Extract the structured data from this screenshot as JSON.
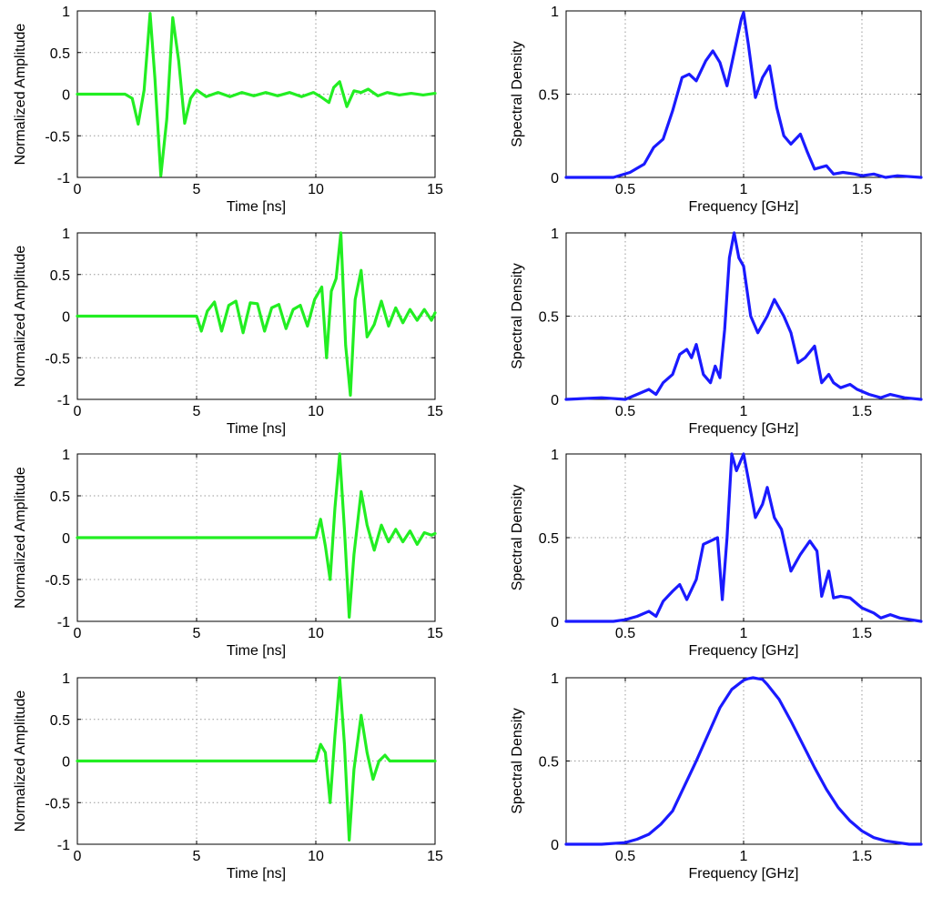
{
  "colors": {
    "time_trace": "#22ee22",
    "spectrum_trace": "#1a1aff",
    "grid": "#9a9a9a",
    "axes": "#000000",
    "background": "#ffffff"
  },
  "chart_data": [
    {
      "id": "time-1",
      "type": "line",
      "xlabel": "Time [ns]",
      "ylabel": "Normalized Amplitude",
      "xlim": [
        0,
        15
      ],
      "ylim": [
        -1,
        1
      ],
      "xticks": [
        0,
        5,
        10,
        15
      ],
      "xtick_labels": [
        "0",
        "5",
        "10",
        "15"
      ],
      "yticks": [
        -1,
        -0.5,
        0,
        0.5,
        1
      ],
      "ytick_labels": [
        "-1",
        "-0.5",
        "0",
        "0.5",
        "1"
      ],
      "grid": true,
      "color": "time_trace",
      "series": [
        {
          "x": [
            0,
            2.0,
            2.3,
            2.55,
            2.8,
            3.05,
            3.25,
            3.5,
            3.75,
            4.0,
            4.25,
            4.5,
            4.75,
            5.0,
            5.4,
            5.9,
            6.4,
            6.9,
            7.4,
            7.9,
            8.4,
            8.9,
            9.4,
            9.9,
            10.2,
            10.55,
            10.75,
            11.0,
            11.3,
            11.6,
            11.9,
            12.2,
            12.6,
            13.0,
            13.5,
            14.0,
            14.5,
            15.0
          ],
          "y": [
            0,
            0,
            -0.05,
            -0.36,
            0.05,
            0.97,
            0.2,
            -0.98,
            -0.3,
            0.92,
            0.4,
            -0.35,
            -0.05,
            0.05,
            -0.03,
            0.02,
            -0.03,
            0.02,
            -0.02,
            0.02,
            -0.02,
            0.02,
            -0.03,
            0.02,
            -0.03,
            -0.1,
            0.08,
            0.15,
            -0.15,
            0.04,
            0.02,
            0.06,
            -0.02,
            0.02,
            -0.01,
            0.01,
            -0.01,
            0.01
          ]
        }
      ]
    },
    {
      "id": "spec-1",
      "type": "line",
      "xlabel": "Frequency [GHz]",
      "ylabel": "Spectral Density",
      "xlim": [
        0.25,
        1.75
      ],
      "ylim": [
        0,
        1
      ],
      "xticks": [
        0.5,
        1,
        1.5
      ],
      "xtick_labels": [
        "0.5",
        "1",
        "1.5"
      ],
      "yticks": [
        0,
        0.5,
        1
      ],
      "ytick_labels": [
        "0",
        "0.5",
        "1"
      ],
      "grid": true,
      "color": "spectrum_trace",
      "series": [
        {
          "x": [
            0.25,
            0.45,
            0.52,
            0.58,
            0.62,
            0.66,
            0.7,
            0.74,
            0.77,
            0.8,
            0.84,
            0.87,
            0.9,
            0.93,
            0.96,
            0.99,
            1.0,
            1.02,
            1.05,
            1.08,
            1.11,
            1.14,
            1.17,
            1.2,
            1.24,
            1.27,
            1.3,
            1.35,
            1.38,
            1.42,
            1.47,
            1.5,
            1.55,
            1.6,
            1.65,
            1.75
          ],
          "y": [
            0,
            0,
            0.03,
            0.08,
            0.18,
            0.23,
            0.4,
            0.6,
            0.62,
            0.58,
            0.7,
            0.76,
            0.69,
            0.55,
            0.75,
            0.95,
            0.99,
            0.8,
            0.48,
            0.6,
            0.67,
            0.42,
            0.25,
            0.2,
            0.26,
            0.15,
            0.05,
            0.07,
            0.02,
            0.03,
            0.02,
            0.01,
            0.02,
            0.0,
            0.01,
            0.0
          ]
        }
      ]
    },
    {
      "id": "time-2",
      "type": "line",
      "xlabel": "Time [ns]",
      "ylabel": "Normalized Amplitude",
      "xlim": [
        0,
        15
      ],
      "ylim": [
        -1,
        1
      ],
      "xticks": [
        0,
        5,
        10,
        15
      ],
      "xtick_labels": [
        "0",
        "5",
        "10",
        "15"
      ],
      "yticks": [
        -1,
        -0.5,
        0,
        0.5,
        1
      ],
      "ytick_labels": [
        "-1",
        "-0.5",
        "0",
        "0.5",
        "1"
      ],
      "grid": true,
      "color": "time_trace",
      "series": [
        {
          "x": [
            0,
            5.0,
            5.2,
            5.45,
            5.75,
            6.05,
            6.35,
            6.65,
            6.95,
            7.25,
            7.55,
            7.85,
            8.15,
            8.45,
            8.75,
            9.05,
            9.35,
            9.65,
            9.95,
            10.25,
            10.45,
            10.65,
            10.85,
            11.05,
            11.25,
            11.45,
            11.65,
            11.9,
            12.15,
            12.45,
            12.75,
            13.05,
            13.35,
            13.65,
            13.95,
            14.25,
            14.55,
            14.85,
            15.0
          ],
          "y": [
            0,
            0,
            -0.18,
            0.06,
            0.17,
            -0.18,
            0.13,
            0.18,
            -0.2,
            0.16,
            0.15,
            -0.18,
            0.1,
            0.14,
            -0.15,
            0.08,
            0.13,
            -0.12,
            0.2,
            0.35,
            -0.5,
            0.3,
            0.45,
            1.0,
            -0.35,
            -0.95,
            0.2,
            0.55,
            -0.25,
            -0.1,
            0.18,
            -0.12,
            0.1,
            -0.08,
            0.08,
            -0.05,
            0.08,
            -0.05,
            0.04
          ]
        }
      ]
    },
    {
      "id": "spec-2",
      "type": "line",
      "xlabel": "Frequency [GHz]",
      "ylabel": "Spectral Density",
      "xlim": [
        0.25,
        1.75
      ],
      "ylim": [
        0,
        1
      ],
      "xticks": [
        0.5,
        1,
        1.5
      ],
      "xtick_labels": [
        "0.5",
        "1",
        "1.5"
      ],
      "yticks": [
        0,
        0.5,
        1
      ],
      "ytick_labels": [
        "0",
        "0.5",
        "1"
      ],
      "grid": true,
      "color": "spectrum_trace",
      "series": [
        {
          "x": [
            0.25,
            0.4,
            0.5,
            0.55,
            0.6,
            0.63,
            0.66,
            0.7,
            0.73,
            0.76,
            0.78,
            0.8,
            0.83,
            0.86,
            0.88,
            0.9,
            0.92,
            0.94,
            0.96,
            0.98,
            1.0,
            1.03,
            1.06,
            1.1,
            1.13,
            1.17,
            1.2,
            1.23,
            1.26,
            1.3,
            1.33,
            1.36,
            1.38,
            1.41,
            1.45,
            1.48,
            1.53,
            1.58,
            1.62,
            1.68,
            1.75
          ],
          "y": [
            0,
            0.01,
            0.0,
            0.03,
            0.06,
            0.03,
            0.1,
            0.15,
            0.27,
            0.3,
            0.25,
            0.33,
            0.15,
            0.1,
            0.2,
            0.13,
            0.42,
            0.85,
            1.0,
            0.85,
            0.8,
            0.5,
            0.4,
            0.5,
            0.6,
            0.5,
            0.4,
            0.22,
            0.25,
            0.32,
            0.1,
            0.15,
            0.1,
            0.07,
            0.09,
            0.06,
            0.03,
            0.01,
            0.03,
            0.01,
            0.0
          ]
        }
      ]
    },
    {
      "id": "time-3",
      "type": "line",
      "xlabel": "Time [ns]",
      "ylabel": "Normalized Amplitude",
      "xlim": [
        0,
        15
      ],
      "ylim": [
        -1,
        1
      ],
      "xticks": [
        0,
        5,
        10,
        15
      ],
      "xtick_labels": [
        "0",
        "5",
        "10",
        "15"
      ],
      "yticks": [
        -1,
        -0.5,
        0,
        0.5,
        1
      ],
      "ytick_labels": [
        "-1",
        "-0.5",
        "0",
        "0.5",
        "1"
      ],
      "grid": true,
      "color": "time_trace",
      "series": [
        {
          "x": [
            0,
            10.0,
            10.2,
            10.4,
            10.6,
            10.8,
            11.0,
            11.2,
            11.4,
            11.6,
            11.9,
            12.15,
            12.45,
            12.75,
            13.05,
            13.35,
            13.65,
            13.95,
            14.25,
            14.55,
            14.85,
            15.0
          ],
          "y": [
            0,
            0,
            0.22,
            -0.1,
            -0.5,
            0.35,
            1.0,
            0.1,
            -0.95,
            -0.2,
            0.55,
            0.15,
            -0.15,
            0.15,
            -0.05,
            0.1,
            -0.05,
            0.08,
            -0.08,
            0.06,
            0.03,
            0.05
          ]
        }
      ]
    },
    {
      "id": "spec-3",
      "type": "line",
      "xlabel": "Frequency [GHz]",
      "ylabel": "Spectral Density",
      "xlim": [
        0.25,
        1.75
      ],
      "ylim": [
        0,
        1
      ],
      "xticks": [
        0.5,
        1,
        1.5
      ],
      "xtick_labels": [
        "0.5",
        "1",
        "1.5"
      ],
      "yticks": [
        0,
        0.5,
        1
      ],
      "ytick_labels": [
        "0",
        "0.5",
        "1"
      ],
      "grid": true,
      "color": "spectrum_trace",
      "series": [
        {
          "x": [
            0.25,
            0.45,
            0.5,
            0.55,
            0.6,
            0.63,
            0.66,
            0.7,
            0.73,
            0.76,
            0.8,
            0.83,
            0.86,
            0.89,
            0.91,
            0.93,
            0.95,
            0.97,
            1.0,
            1.02,
            1.05,
            1.08,
            1.1,
            1.13,
            1.16,
            1.2,
            1.24,
            1.28,
            1.31,
            1.33,
            1.36,
            1.38,
            1.41,
            1.45,
            1.5,
            1.55,
            1.58,
            1.62,
            1.66,
            1.75
          ],
          "y": [
            0,
            0,
            0.01,
            0.03,
            0.06,
            0.03,
            0.12,
            0.18,
            0.22,
            0.13,
            0.25,
            0.46,
            0.48,
            0.5,
            0.13,
            0.5,
            1.0,
            0.9,
            1.0,
            0.85,
            0.62,
            0.7,
            0.8,
            0.62,
            0.55,
            0.3,
            0.4,
            0.48,
            0.42,
            0.15,
            0.3,
            0.14,
            0.15,
            0.14,
            0.08,
            0.05,
            0.02,
            0.04,
            0.02,
            0.0
          ]
        }
      ]
    },
    {
      "id": "time-4",
      "type": "line",
      "xlabel": "Time [ns]",
      "ylabel": "Normalized Amplitude",
      "xlim": [
        0,
        15
      ],
      "ylim": [
        -1,
        1
      ],
      "xticks": [
        0,
        5,
        10,
        15
      ],
      "xtick_labels": [
        "0",
        "5",
        "10",
        "15"
      ],
      "yticks": [
        -1,
        -0.5,
        0,
        0.5,
        1
      ],
      "ytick_labels": [
        "-1",
        "-0.5",
        "0",
        "0.5",
        "1"
      ],
      "grid": true,
      "color": "time_trace",
      "series": [
        {
          "x": [
            0,
            10.0,
            10.2,
            10.4,
            10.6,
            10.8,
            11.0,
            11.2,
            11.4,
            11.6,
            11.9,
            12.15,
            12.4,
            12.65,
            12.9,
            13.1,
            13.3,
            15.0
          ],
          "y": [
            0,
            0,
            0.2,
            0.1,
            -0.5,
            0.3,
            1.0,
            0.2,
            -0.95,
            -0.1,
            0.55,
            0.1,
            -0.22,
            0.0,
            0.07,
            0.0,
            0.0,
            0.0
          ]
        }
      ]
    },
    {
      "id": "spec-4",
      "type": "line",
      "xlabel": "Frequency [GHz]",
      "ylabel": "Spectral Density",
      "xlim": [
        0.25,
        1.75
      ],
      "ylim": [
        0,
        1
      ],
      "xticks": [
        0.5,
        1,
        1.5
      ],
      "xtick_labels": [
        "0.5",
        "1",
        "1.5"
      ],
      "yticks": [
        0,
        0.5,
        1
      ],
      "ytick_labels": [
        "0",
        "0.5",
        "1"
      ],
      "grid": true,
      "color": "spectrum_trace",
      "series": [
        {
          "x": [
            0.25,
            0.3,
            0.4,
            0.5,
            0.55,
            0.6,
            0.65,
            0.7,
            0.75,
            0.8,
            0.85,
            0.9,
            0.95,
            1.0,
            1.02,
            1.04,
            1.06,
            1.08,
            1.1,
            1.15,
            1.2,
            1.25,
            1.3,
            1.35,
            1.4,
            1.45,
            1.5,
            1.55,
            1.6,
            1.65,
            1.7,
            1.75
          ],
          "y": [
            0.0,
            0.0,
            0.0,
            0.01,
            0.03,
            0.06,
            0.12,
            0.2,
            0.35,
            0.5,
            0.66,
            0.82,
            0.93,
            0.985,
            0.995,
            1.0,
            0.995,
            0.99,
            0.96,
            0.87,
            0.74,
            0.6,
            0.46,
            0.33,
            0.22,
            0.14,
            0.08,
            0.04,
            0.02,
            0.01,
            0.0,
            0.0
          ]
        }
      ]
    }
  ]
}
